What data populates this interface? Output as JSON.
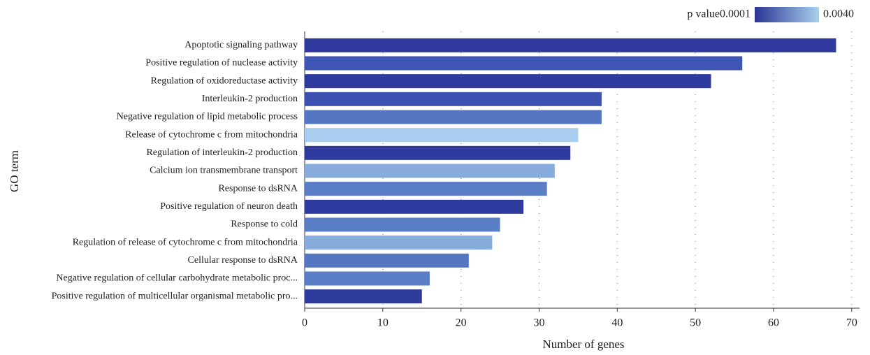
{
  "chart_data": {
    "type": "bar",
    "orientation": "horizontal",
    "xlabel": "Number of genes",
    "ylabel": "GO term",
    "categories": [
      "Apoptotic signaling pathway",
      "Positive regulation of nuclease activity",
      "Regulation of oxidoreductase activity",
      "Interleukin-2 production",
      "Negative regulation of lipid metabolic process",
      "Release of cytochrome c from mitochondria",
      "Regulation of interleukin-2 production",
      "Calcium ion transmembrane transport",
      "Response to dsRNA",
      "Positive regulation of neuron death",
      "Response to cold",
      "Regulation of release of cytochrome c from mitochondria",
      "Cellular response to dsRNA",
      "Negative regulation of cellular carbohydrate metabolic proc...",
      "Positive regulation of multicellular organismal metabolic pro..."
    ],
    "values": [
      68,
      56,
      52,
      38,
      38,
      35,
      34,
      32,
      31,
      28,
      25,
      24,
      21,
      16,
      15
    ],
    "colors": [
      "#2e3a9c",
      "#3f55b3",
      "#2e3a9c",
      "#3d52b0",
      "#5577c2",
      "#a8cdee",
      "#2e3a9c",
      "#88acdd",
      "#5a7ec6",
      "#2f3b9e",
      "#5a7ec6",
      "#88acdd",
      "#5577c2",
      "#5a7ec6",
      "#2e3a9c"
    ],
    "xlim": [
      0,
      71
    ],
    "xticks": [
      0,
      10,
      20,
      30,
      40,
      50,
      60,
      70
    ],
    "grid": true,
    "colorbar": {
      "title": "p value",
      "ticks": [
        0.0001,
        {
          "value": 0.004,
          "label": "0.0040"
        }
      ],
      "colors": [
        "#2b3594",
        "#a8d0f0"
      ]
    }
  }
}
